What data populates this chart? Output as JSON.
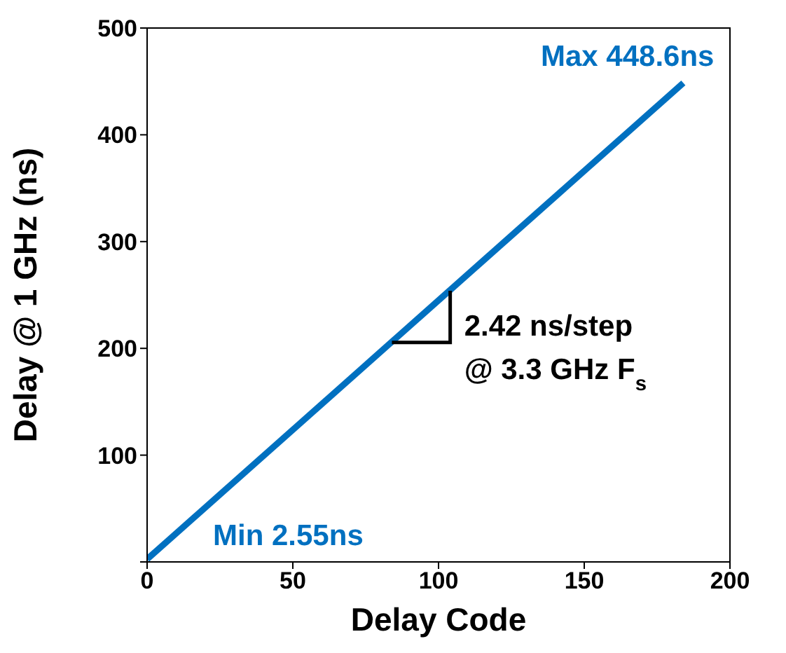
{
  "chart_data": {
    "type": "line",
    "xlabel": "Delay Code",
    "ylabel": "Delay @ 1 GHz (ns)",
    "x": [
      0,
      184
    ],
    "series": [
      {
        "color": "#0070c0",
        "values": [
          2.55,
          448.6
        ]
      }
    ],
    "xlim": [
      0,
      200
    ],
    "xticks": [
      0,
      50,
      100,
      150,
      200
    ],
    "ylim": [
      0,
      500
    ],
    "yticks": [
      {
        "value": 0,
        "label": null
      },
      100,
      200,
      300,
      400,
      500
    ],
    "grid": false,
    "legend": false,
    "marker": "none",
    "line_style": "solid",
    "annotations": [
      {
        "text": "Max 448.6ns",
        "x": 184,
        "y": 448.6
      },
      {
        "text": "Min 2.55ns",
        "x": 0,
        "y": 2.55
      },
      {
        "text": "2.42 ns/step\n@ 3.3 GHz F$_{s}$",
        "x": 104,
        "y": 254
      }
    ]
  }
}
